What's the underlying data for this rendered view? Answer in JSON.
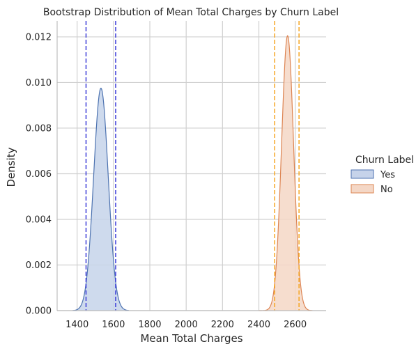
{
  "chart_data": {
    "type": "area",
    "title": "Bootstrap Distribution of Mean Total Charges by Churn Label",
    "xlabel": "Mean Total Charges",
    "ylabel": "Density",
    "xlim": [
      1290,
      2770
    ],
    "ylim": [
      0,
      0.0127
    ],
    "xticks": [
      1400,
      1600,
      1800,
      2000,
      2200,
      2400,
      2600
    ],
    "yticks": [
      0.0,
      0.002,
      0.004,
      0.006,
      0.008,
      0.01,
      0.012
    ],
    "ytick_labels": [
      "0.000",
      "0.002",
      "0.004",
      "0.006",
      "0.008",
      "0.010",
      "0.012"
    ],
    "grid": true,
    "legend": {
      "title": "Churn Label",
      "placement": "right"
    },
    "series": [
      {
        "name": "Yes",
        "color": "#4c72b0",
        "fill": "#c6d3ea",
        "mean": 1531,
        "peak": 0.00975,
        "sd": 40,
        "range": [
          1375,
          1685
        ],
        "ci": [
          1449,
          1612
        ],
        "ci_color": "#3b3bd9"
      },
      {
        "name": "No",
        "color": "#dd8452",
        "fill": "#f4d7c6",
        "mean": 2558,
        "peak": 0.01205,
        "sd": 33,
        "range": [
          2400,
          2695
        ],
        "ci": [
          2487,
          2621
        ],
        "ci_color": "#f5a623"
      }
    ]
  }
}
